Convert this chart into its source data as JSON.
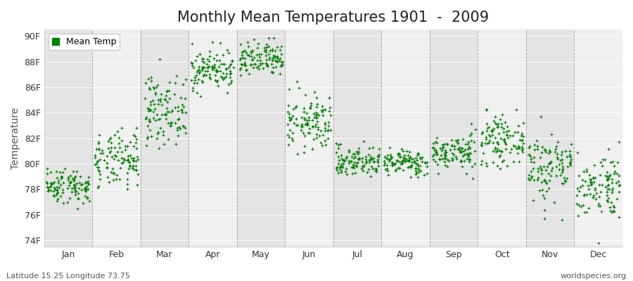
{
  "title": "Monthly Mean Temperatures 1901  -  2009",
  "ylabel": "Temperature",
  "xlabel_labels": [
    "Jan",
    "Feb",
    "Mar",
    "Apr",
    "May",
    "Jun",
    "Jul",
    "Aug",
    "Sep",
    "Oct",
    "Nov",
    "Dec"
  ],
  "ytick_labels": [
    "74F",
    "76F",
    "78F",
    "80F",
    "82F",
    "84F",
    "86F",
    "88F",
    "90F"
  ],
  "ytick_values": [
    74,
    76,
    78,
    80,
    82,
    84,
    86,
    88,
    90
  ],
  "ylim": [
    73.5,
    90.5
  ],
  "legend_label": "Mean Temp",
  "dot_color": "#008000",
  "bg_color": "#ffffff",
  "plot_bg_color": "#f5f5f5",
  "band_light": "#f0f0f0",
  "band_dark": "#e4e4e4",
  "grid_color": "#888888",
  "title_fontsize": 15,
  "axis_fontsize": 10,
  "tick_fontsize": 9,
  "footer_left": "Latitude 15.25 Longitude 73.75",
  "footer_right": "worldspecies.org",
  "monthly_means": [
    78.3,
    80.2,
    84.2,
    87.4,
    88.1,
    83.2,
    80.2,
    80.1,
    80.9,
    81.8,
    79.8,
    78.3
  ],
  "monthly_stds": [
    0.7,
    1.1,
    1.3,
    0.8,
    0.7,
    1.1,
    0.6,
    0.5,
    0.7,
    0.9,
    1.4,
    1.3
  ],
  "n_years": 109,
  "seed": 42
}
